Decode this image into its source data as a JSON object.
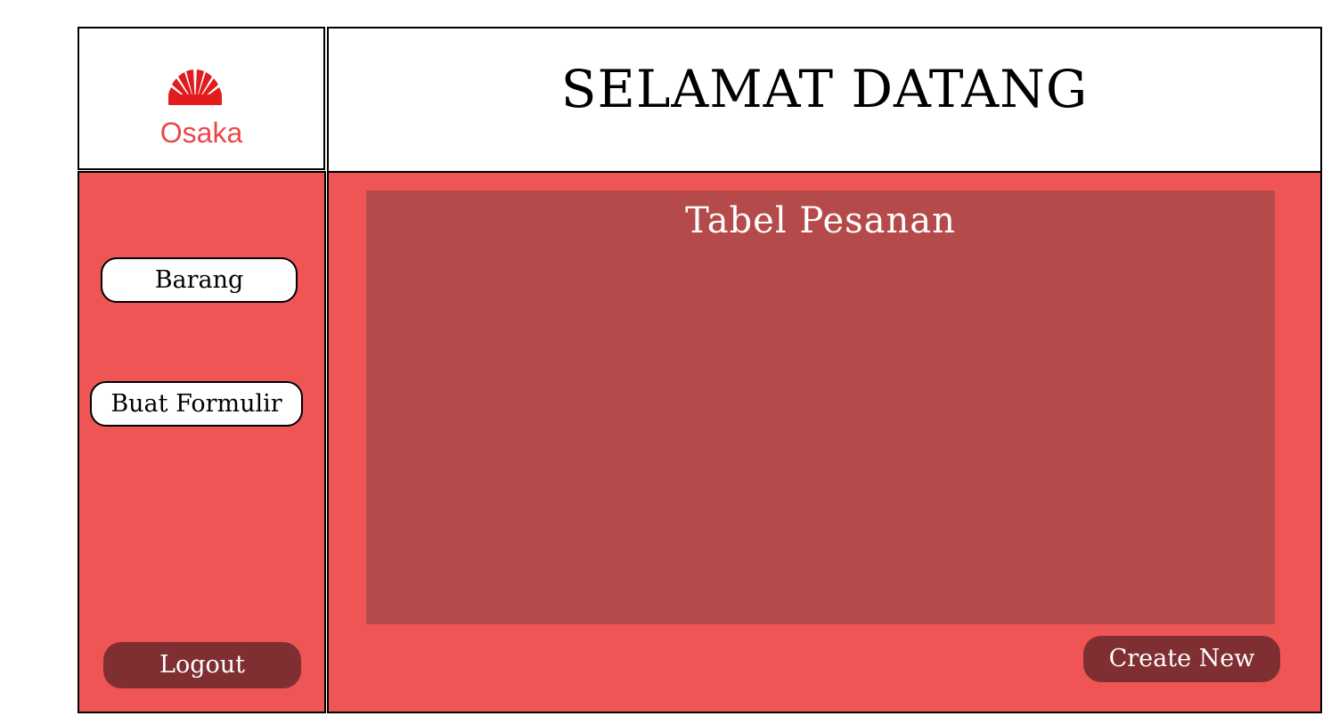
{
  "logo": {
    "icon": "fan-icon",
    "text": "Osaka",
    "color": "#e8484a"
  },
  "header": {
    "title": "SELAMAT DATANG"
  },
  "sidebar": {
    "items": [
      {
        "label": "Barang"
      },
      {
        "label": "Buat Formulir"
      }
    ],
    "logout_label": "Logout"
  },
  "main": {
    "table_title": "Tabel Pesanan",
    "create_label": "Create New"
  },
  "colors": {
    "primary": "#ef5555",
    "panel": "#b54a4a",
    "dark_button": "#7f2f31"
  }
}
